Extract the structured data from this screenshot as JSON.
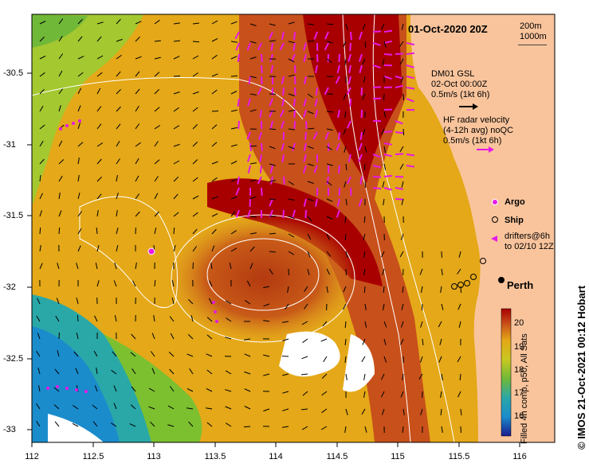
{
  "title": "01-Oct-2020 20Z",
  "isobaths": [
    "200m",
    "1000m"
  ],
  "model": {
    "name": "DM01 GSL",
    "time": "02-Oct 00:00Z",
    "scale": "0.5m/s (1kt 6h)"
  },
  "hf_radar": {
    "line1": "HF radar velocity",
    "line2": "(4-12h avg) noQC",
    "scale": "0.5m/s (1kt 6h)"
  },
  "legend": {
    "argo": "Argo",
    "ship": "Ship",
    "drifters_1": "drifters@6h",
    "drifters_2": "to 02/10 12Z"
  },
  "place": "Perth",
  "credit": "© IMOS 21-Oct-2021 00:12 Hobart",
  "colorbar": {
    "label": "Filled 4h comp, p50, All Sats",
    "ticks": [
      "20",
      "19",
      "18",
      "17",
      "16"
    ]
  },
  "x_ticks": [
    "112",
    "112.5",
    "113",
    "113.5",
    "114",
    "114.5",
    "115",
    "115.5",
    "116"
  ],
  "y_ticks": [
    "-30.5",
    "-31",
    "-31.5",
    "-32",
    "-32.5",
    "-33"
  ],
  "colors": {
    "land": "#f9c49c",
    "warm": "#a80000",
    "hf_arrow": "#e619e6",
    "argo": "#e619e6"
  }
}
